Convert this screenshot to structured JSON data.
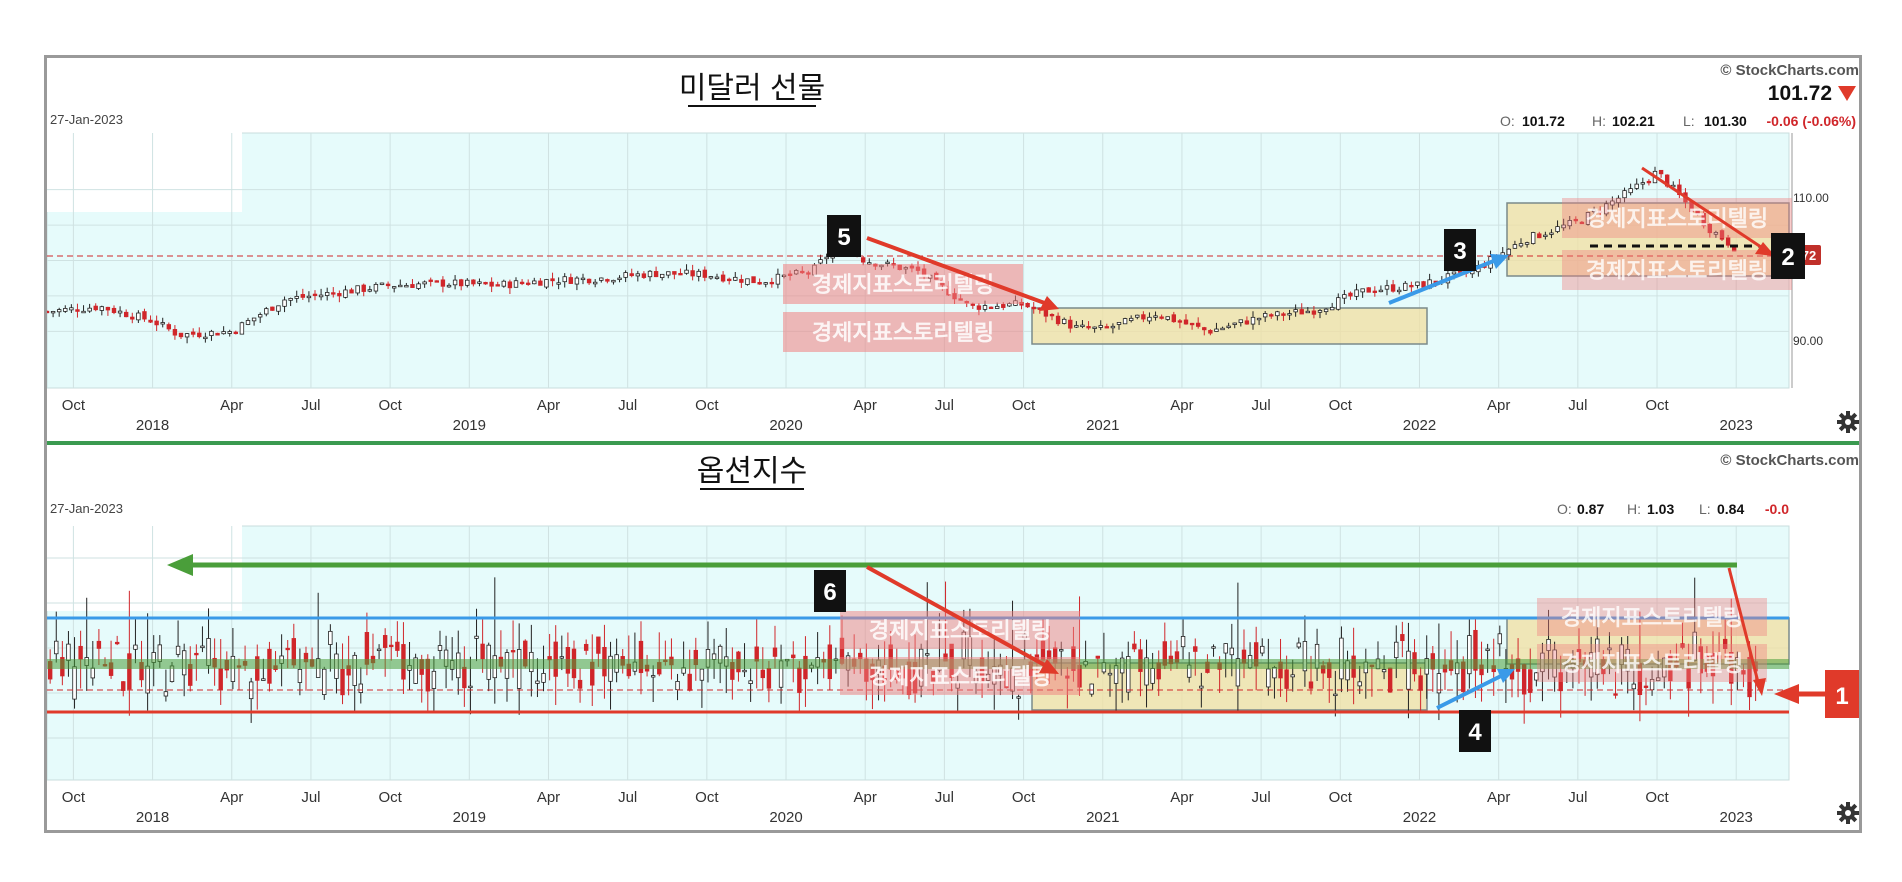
{
  "panels": [
    {
      "title": "미달러 선물",
      "date": "27-Jan-2023",
      "credit": "© StockCharts.com",
      "last_price": "101.72",
      "last_price_tag": "72",
      "ohlc": {
        "o_label": "O:",
        "o": "101.72",
        "h_label": "H:",
        "h": "102.21",
        "l_label": "L:",
        "l": "101.30",
        "change": "-0.06 (-0.06%)"
      },
      "y_ticks": [
        "110.00",
        "90.00"
      ],
      "watermark": "경제지표스토리텔링"
    },
    {
      "title": "옵션지수",
      "date": "27-Jan-2023",
      "credit": "© StockCharts.com",
      "ohlc": {
        "o_label": "O:",
        "o": "0.87",
        "h_label": "H:",
        "h": "1.03",
        "l_label": "L:",
        "l": "0.84",
        "change": "-0.0"
      },
      "watermark": "경제지표스토리텔링"
    }
  ],
  "x_months": [
    "Oct",
    "Apr",
    "Jul",
    "Oct",
    "Apr",
    "Jul",
    "Oct",
    "Apr",
    "Jul",
    "Oct",
    "Apr",
    "Jul",
    "Oct",
    "Apr",
    "Jul",
    "Oct"
  ],
  "x_years": [
    "2018",
    "2019",
    "2020",
    "2021",
    "2022",
    "2023"
  ],
  "annotations": [
    "1",
    "2",
    "3",
    "4",
    "5",
    "6"
  ],
  "colors": {
    "up": "#222222",
    "down": "#d0262a",
    "plot_bg": "#e6fbfb",
    "box_fill": "#f2dfa0",
    "arrow_red": "#e03a2a",
    "arrow_blue": "#3a9ae8",
    "line_green": "#4a9e3a",
    "line_blue": "#3a9ae8",
    "line_red": "#e03a2a"
  },
  "chart_data": [
    {
      "type": "candlestick",
      "title": "미달러 선물",
      "ylim": [
        82,
        118
      ],
      "y_ticks": [
        90,
        110
      ],
      "x_range": [
        "2017-09",
        "2023-03"
      ],
      "last": 101.72,
      "reference_line": 101.72,
      "x": [
        "2017-09",
        "2017-11",
        "2018-01",
        "2018-02",
        "2018-04",
        "2018-06",
        "2018-08",
        "2018-10",
        "2018-12",
        "2019-02",
        "2019-04",
        "2019-06",
        "2019-08",
        "2019-10",
        "2019-12",
        "2020-02",
        "2020-03",
        "2020-04",
        "2020-06",
        "2020-08",
        "2020-10",
        "2020-12",
        "2021-01",
        "2021-03",
        "2021-05",
        "2021-07",
        "2021-09",
        "2021-11",
        "2022-01",
        "2022-03",
        "2022-05",
        "2022-07",
        "2022-09",
        "2022-10",
        "2022-12",
        "2023-01"
      ],
      "close": [
        92.8,
        93.5,
        91.5,
        89.5,
        90.0,
        94.5,
        95.5,
        96.5,
        96.8,
        96.5,
        97.2,
        97.5,
        98.2,
        98.0,
        97.0,
        98.5,
        102.5,
        100.0,
        98.5,
        93.5,
        93.8,
        90.5,
        90.3,
        92.5,
        90.0,
        92.0,
        93.0,
        95.8,
        96.5,
        98.5,
        103.0,
        105.5,
        109.8,
        112.5,
        104.5,
        101.72
      ],
      "marks": [
        "1",
        "2",
        "3",
        "4",
        "5",
        "6"
      ]
    },
    {
      "type": "candlestick",
      "title": "옵션지수",
      "ylim": [
        0.0,
        2.1
      ],
      "x_range": [
        "2017-09",
        "2023-03"
      ],
      "last": {
        "open": 0.87,
        "high": 1.03,
        "low": 0.84,
        "close": 0.86
      },
      "reference_line": 0.86,
      "levels": {
        "green": 1.9,
        "blue": 1.3,
        "red": 0.75
      }
    }
  ]
}
